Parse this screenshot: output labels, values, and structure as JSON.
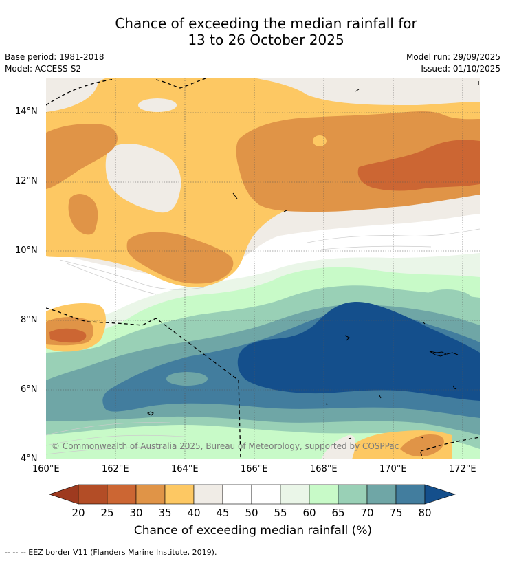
{
  "title": {
    "line1": "Chance of exceeding the median rainfall for",
    "line2": "13 to 26 October 2025"
  },
  "meta": {
    "base_period": "Base period: 1981-2018",
    "model": "Model: ACCESS-S2",
    "model_run": "Model run: 29/09/2025",
    "issued": "Issued: 01/10/2025"
  },
  "axes": {
    "lat_labels": [
      "14°N",
      "12°N",
      "10°N",
      "8°N",
      "6°N",
      "4°N"
    ],
    "lon_labels": [
      "160°E",
      "162°E",
      "164°E",
      "166°E",
      "168°E",
      "170°E",
      "172°E"
    ]
  },
  "map": {
    "copyright": "© Commonwealth of Australia 2025, Bureau of Meteorology, supported by COSPPac",
    "colors": {
      "c20": "#b34d26",
      "c25": "#cc6633",
      "c30": "#e09447",
      "c35": "#fdc863",
      "c40": "#f0ece6",
      "c45": "#ffffff",
      "c55": "#eaf6e8",
      "c60": "#c8fac8",
      "c65": "#99d0b6",
      "c70": "#6fa6a6",
      "c75": "#427d9e",
      "c80": "#144f8c",
      "below": "#9e3a1f"
    }
  },
  "colorbar": {
    "labels": [
      "20",
      "25",
      "30",
      "35",
      "40",
      "45",
      "50",
      "55",
      "60",
      "65",
      "70",
      "75",
      "80"
    ],
    "title": "Chance of exceeding median rainfall (%)"
  },
  "footer": {
    "eez": "--  --  -- EEZ border V11 (Flanders Marine Institute, 2019)."
  }
}
